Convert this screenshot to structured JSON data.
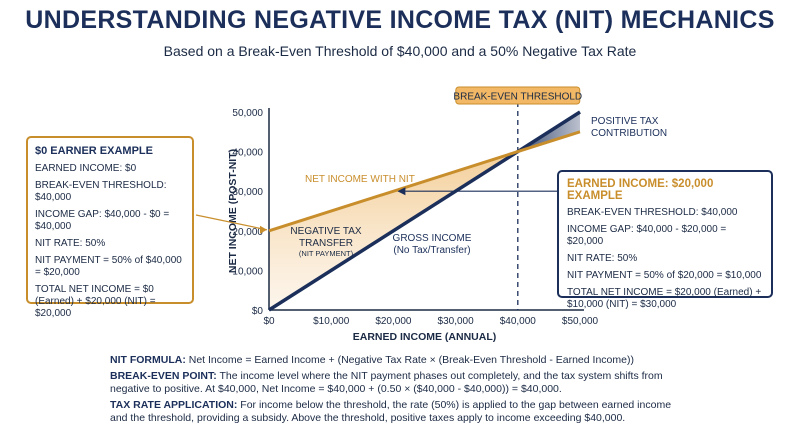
{
  "header": {
    "title": "UNDERSTANDING NEGATIVE INCOME TAX (NIT) MECHANICS",
    "subtitle": "Based on a Break-Even Threshold of $40,000 and a 50% Negative Tax Rate"
  },
  "left_box": {
    "title": "$0 EARNER EXAMPLE",
    "lines": [
      "EARNED INCOME: $0",
      "BREAK-EVEN THRESHOLD: $40,000",
      "INCOME GAP: $40,000 - $0 = $40,000",
      "NIT RATE: 50%",
      "NIT PAYMENT = 50% of $40,000 = $20,000",
      "TOTAL NET INCOME = $0 (Earned) + $20,000 (NIT) = $20,000"
    ]
  },
  "right_box": {
    "title": "EARNED INCOME: $20,000 EXAMPLE",
    "lines": [
      "BREAK-EVEN THRESHOLD: $40,000",
      "INCOME GAP: $40,000 - $20,000 = $20,000",
      "NIT RATE: 50%",
      "NIT PAYMENT = 50% of $20,000 = $10,000",
      "TOTAL NET INCOME = $20,000 (Earned) + $10,000 (NIT) = $30,000"
    ]
  },
  "notes": [
    {
      "label": "NIT FORMULA:",
      "text": " Net Income = Earned Income + (Negative Tax Rate × (Break-Even Threshold - Earned Income))"
    },
    {
      "label": "BREAK-EVEN POINT:",
      "text": " The income level where the NIT payment phases out completely, and the tax system shifts from negative to positive. At $40,000, Net Income = $40,000 + (0.50 × ($40,000 - $40,000)) = $40,000."
    },
    {
      "label": "TAX RATE APPLICATION:",
      "text": " For income below the threshold, the rate (50%) is applied to the gap between earned income and the threshold, providing a subsidy. Above the threshold, positive taxes apply to income exceeding $40,000."
    }
  ],
  "chart_data": {
    "type": "line",
    "title": "",
    "xlabel": "EARNED INCOME (ANNUAL)",
    "ylabel": "NET INCOME (POST-NIT)",
    "xlim": [
      0,
      50000
    ],
    "ylim": [
      0,
      50000
    ],
    "x_ticks": [
      "$0",
      "$10,000",
      "$20,000",
      "$30,000",
      "$40,000",
      "$50,000"
    ],
    "y_ticks": [
      "$0",
      "10,000",
      "20,000",
      "30,000",
      "40,000",
      "50,000"
    ],
    "series": [
      {
        "name": "NET INCOME WITH NIT",
        "x": [
          0,
          40000,
          50000
        ],
        "y": [
          20000,
          40000,
          45000
        ],
        "color": "#c98e2c"
      },
      {
        "name": "GROSS INCOME",
        "x": [
          0,
          50000
        ],
        "y": [
          0,
          50000
        ],
        "color": "#1b2f5a"
      }
    ],
    "annotations": {
      "break_even_label": "BREAK-EVEN THRESHOLD",
      "break_even_x": 40000,
      "net_income_label": "NET INCOME WITH NIT",
      "transfer_label_1": "NEGATIVE TAX",
      "transfer_label_2": "TRANSFER",
      "transfer_label_3": "(NIT PAYMENT)",
      "gross_label_1": "GROSS INCOME",
      "gross_label_2": "(No Tax/Transfer)",
      "positive_label_1": "POSITIVE TAX",
      "positive_label_2": "CONTRIBUTION"
    },
    "grid": false,
    "colors": {
      "accent": "#c98e2c",
      "navy": "#1b2f5a",
      "fill": "#f6dcb4"
    }
  }
}
